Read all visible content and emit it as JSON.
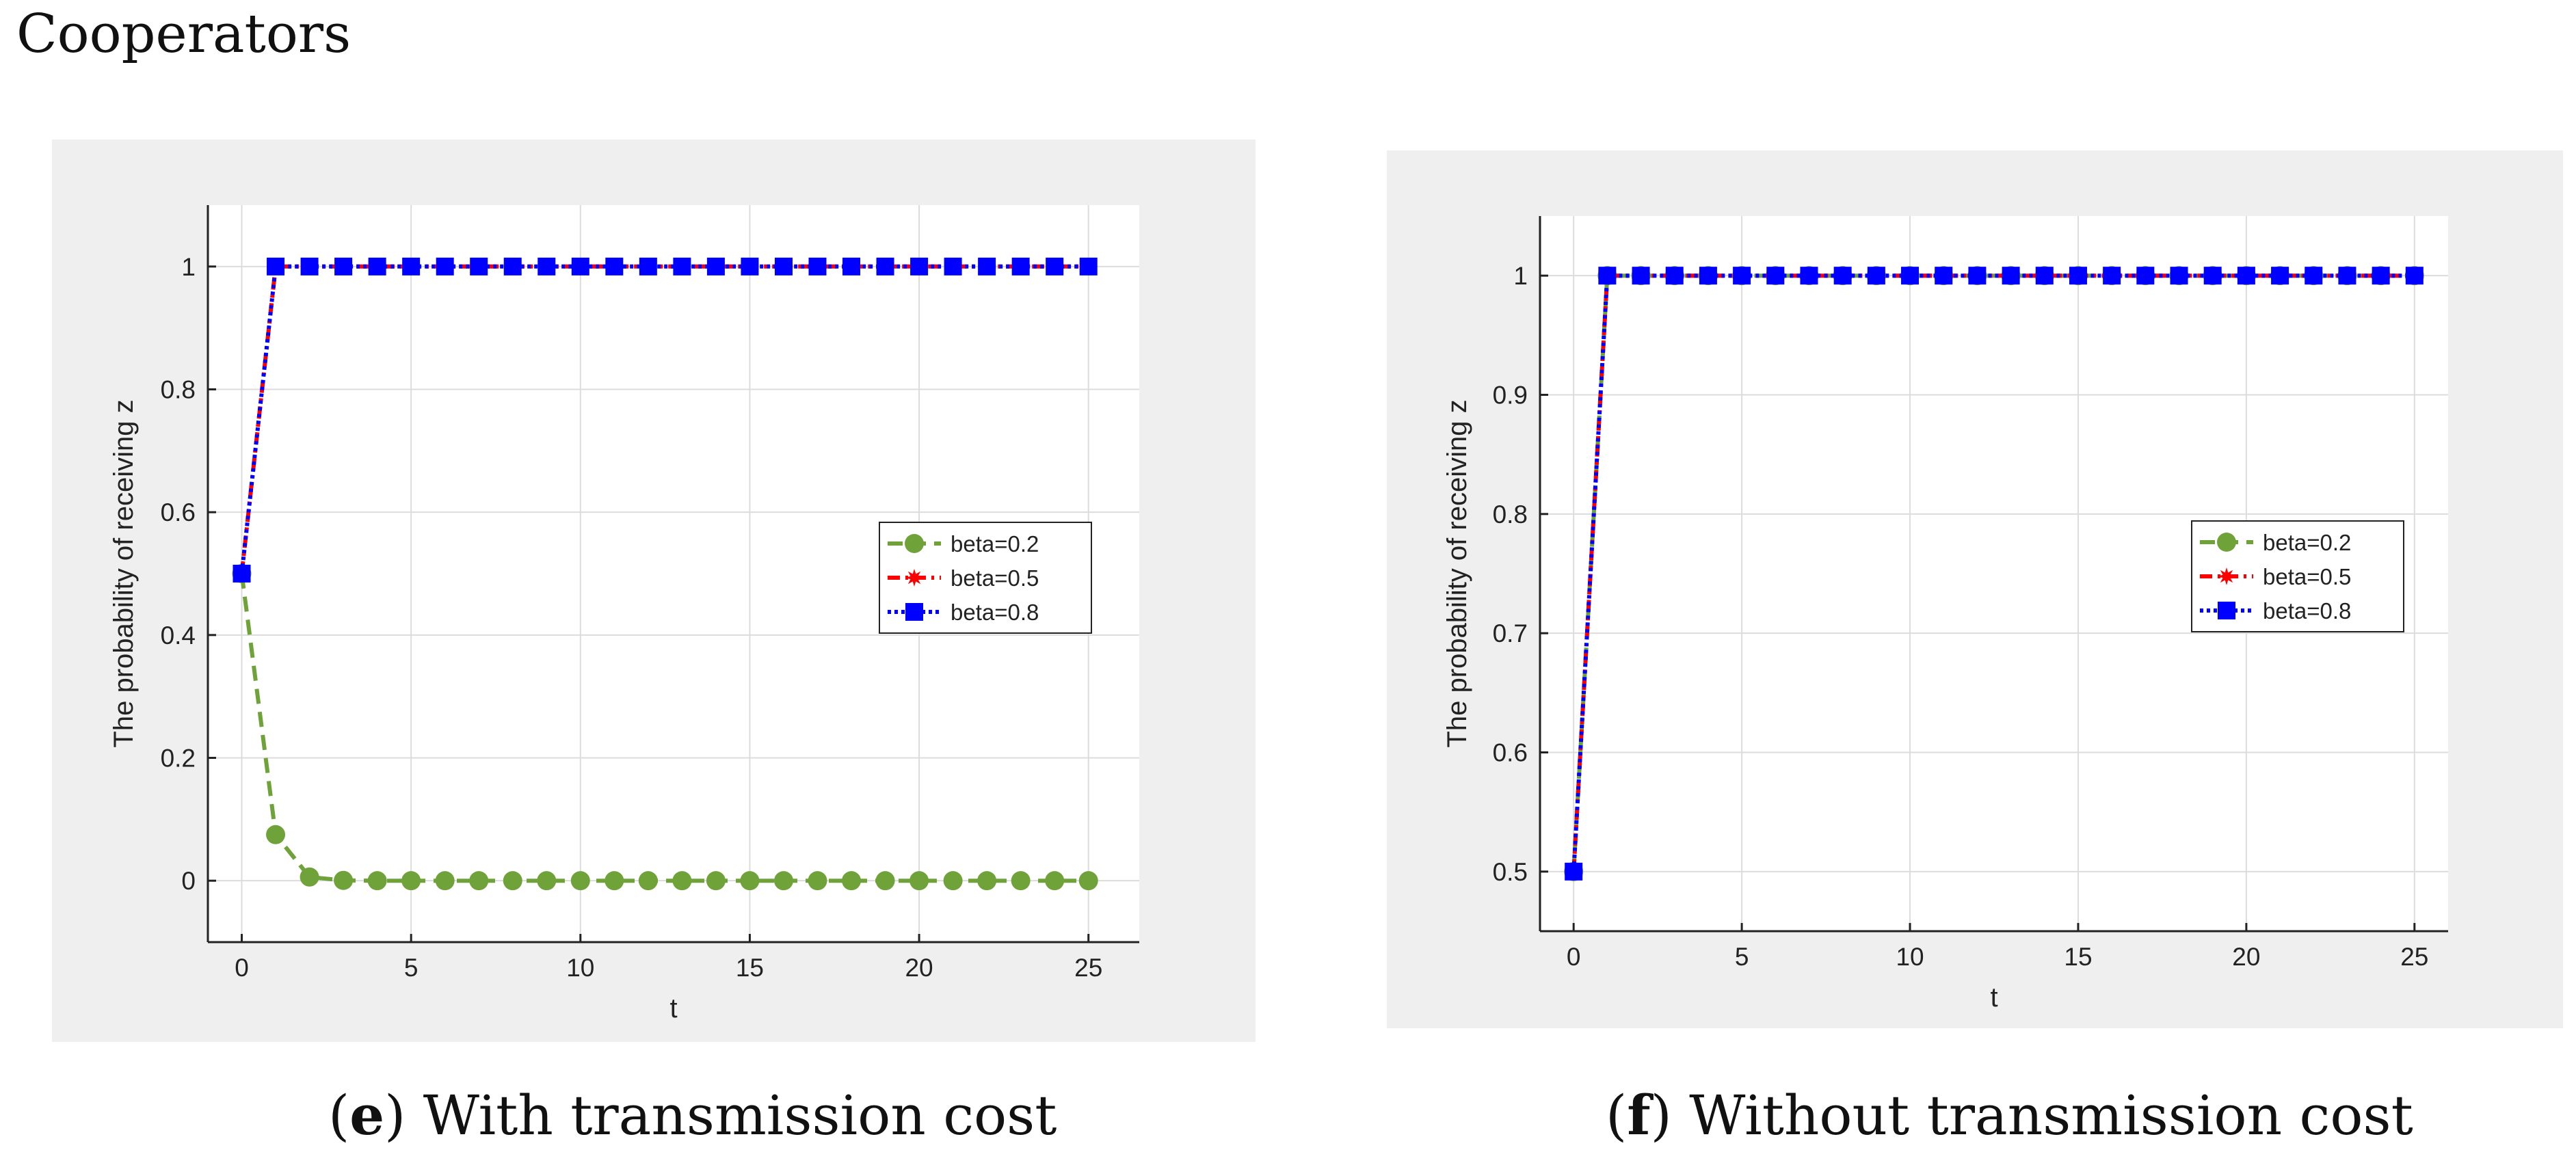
{
  "page": {
    "title": "Cooperators"
  },
  "charts": [
    {
      "caption_letter": "e",
      "caption_text": "With transmission cost"
    },
    {
      "caption_letter": "f",
      "caption_text": "Without transmission cost"
    }
  ],
  "chart_data": [
    {
      "type": "line",
      "title": "",
      "xlabel": "t",
      "ylabel": "The probability of receiving z",
      "xlim": [
        -1,
        26.5
      ],
      "ylim": [
        -0.1,
        1.1
      ],
      "xticks": [
        0,
        5,
        10,
        15,
        20,
        25
      ],
      "yticks": [
        0,
        0.2,
        0.4,
        0.6,
        0.8,
        1
      ],
      "ytick_labels": [
        "0",
        "0.2",
        "0.4",
        "0.6",
        "0.8",
        "1"
      ],
      "grid": true,
      "legend_position": "center-right",
      "x": [
        0,
        1,
        2,
        3,
        4,
        5,
        6,
        7,
        8,
        9,
        10,
        11,
        12,
        13,
        14,
        15,
        16,
        17,
        18,
        19,
        20,
        21,
        22,
        23,
        24,
        25
      ],
      "series": [
        {
          "name": "beta=0.2",
          "color": "#6fa33a",
          "style": "dashed-circle",
          "values": [
            0.5,
            0.075,
            0.006,
            0.0005,
            0,
            0,
            0,
            0,
            0,
            0,
            0,
            0,
            0,
            0,
            0,
            0,
            0,
            0,
            0,
            0,
            0,
            0,
            0,
            0,
            0,
            0
          ]
        },
        {
          "name": "beta=0.5",
          "color": "#ff0000",
          "style": "dashdot-star",
          "values": [
            0.5,
            1,
            1,
            1,
            1,
            1,
            1,
            1,
            1,
            1,
            1,
            1,
            1,
            1,
            1,
            1,
            1,
            1,
            1,
            1,
            1,
            1,
            1,
            1,
            1,
            1
          ]
        },
        {
          "name": "beta=0.8",
          "color": "#0000ff",
          "style": "dotted-square",
          "values": [
            0.5,
            1,
            1,
            1,
            1,
            1,
            1,
            1,
            1,
            1,
            1,
            1,
            1,
            1,
            1,
            1,
            1,
            1,
            1,
            1,
            1,
            1,
            1,
            1,
            1,
            1
          ]
        }
      ]
    },
    {
      "type": "line",
      "title": "",
      "xlabel": "t",
      "ylabel": "The probability of receiving z",
      "xlim": [
        -1,
        26
      ],
      "ylim": [
        0.45,
        1.05
      ],
      "xticks": [
        0,
        5,
        10,
        15,
        20,
        25
      ],
      "yticks": [
        0.5,
        0.6,
        0.7,
        0.8,
        0.9,
        1
      ],
      "ytick_labels": [
        "0.5",
        "0.6",
        "0.7",
        "0.8",
        "0.9",
        "1"
      ],
      "grid": true,
      "legend_position": "center-right",
      "x": [
        0,
        1,
        2,
        3,
        4,
        5,
        6,
        7,
        8,
        9,
        10,
        11,
        12,
        13,
        14,
        15,
        16,
        17,
        18,
        19,
        20,
        21,
        22,
        23,
        24,
        25
      ],
      "series": [
        {
          "name": "beta=0.2",
          "color": "#6fa33a",
          "style": "dashed-circle",
          "values": [
            0.5,
            1,
            1,
            1,
            1,
            1,
            1,
            1,
            1,
            1,
            1,
            1,
            1,
            1,
            1,
            1,
            1,
            1,
            1,
            1,
            1,
            1,
            1,
            1,
            1,
            1
          ]
        },
        {
          "name": "beta=0.5",
          "color": "#ff0000",
          "style": "dashdot-star",
          "values": [
            0.5,
            1,
            1,
            1,
            1,
            1,
            1,
            1,
            1,
            1,
            1,
            1,
            1,
            1,
            1,
            1,
            1,
            1,
            1,
            1,
            1,
            1,
            1,
            1,
            1,
            1
          ]
        },
        {
          "name": "beta=0.8",
          "color": "#0000ff",
          "style": "dotted-square",
          "values": [
            0.5,
            1,
            1,
            1,
            1,
            1,
            1,
            1,
            1,
            1,
            1,
            1,
            1,
            1,
            1,
            1,
            1,
            1,
            1,
            1,
            1,
            1,
            1,
            1,
            1,
            1
          ]
        }
      ]
    }
  ]
}
